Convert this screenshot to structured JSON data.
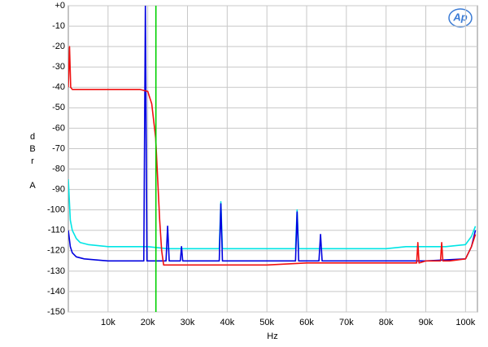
{
  "chart_data": {
    "type": "line",
    "logo": "Ap",
    "xlabel": "Hz",
    "ylabel": [
      "d",
      "B",
      "r",
      "A"
    ],
    "xlim": [
      0,
      103000
    ],
    "ylim": [
      -150,
      0
    ],
    "xticks": [
      {
        "value": 10000,
        "label": "10k"
      },
      {
        "value": 20000,
        "label": "20k"
      },
      {
        "value": 30000,
        "label": "30k"
      },
      {
        "value": 40000,
        "label": "40k"
      },
      {
        "value": 50000,
        "label": "50k"
      },
      {
        "value": 60000,
        "label": "60k"
      },
      {
        "value": 70000,
        "label": "70k"
      },
      {
        "value": 80000,
        "label": "80k"
      },
      {
        "value": 90000,
        "label": "90k"
      },
      {
        "value": 100000,
        "label": "100k"
      }
    ],
    "yticks": [
      {
        "value": 0,
        "label": "+0"
      },
      -10,
      -20,
      -30,
      -40,
      -50,
      -60,
      -70,
      -80,
      -90,
      -100,
      -110,
      -120,
      -130,
      -140,
      -150
    ],
    "grid": true,
    "series": [
      {
        "color": "#00e5e5",
        "x": [
          0,
          500,
          1000,
          2000,
          3000,
          5000,
          10000,
          15000,
          20000,
          25000,
          30000,
          35000,
          38000,
          38400,
          38800,
          45000,
          50000,
          55000,
          57200,
          57600,
          58000,
          65000,
          70000,
          75000,
          80000,
          85000,
          90000,
          95000,
          100000,
          101500,
          102500
        ],
        "values": [
          -85,
          -105,
          -110,
          -114,
          -116,
          -117,
          -118,
          -118,
          -118,
          -119,
          -119,
          -119,
          -119,
          -96,
          -119,
          -119,
          -119,
          -119,
          -119,
          -100,
          -119,
          -119,
          -119,
          -119,
          -119,
          -118,
          -118,
          -118,
          -117,
          -113,
          -108
        ]
      },
      {
        "color": "#0000e0",
        "x": [
          0,
          500,
          1000,
          2000,
          4000,
          10000,
          19000,
          19400,
          19800,
          24600,
          25000,
          25400,
          28200,
          28500,
          28800,
          38000,
          38400,
          38800,
          50000,
          57200,
          57600,
          58000,
          63100,
          63500,
          63900,
          75000,
          80000,
          90000,
          100000,
          101500,
          102500
        ],
        "values": [
          -110,
          -118,
          -121,
          -123,
          -124,
          -125,
          -125,
          0,
          -125,
          -125,
          -108,
          -125,
          -125,
          -118,
          -125,
          -125,
          -97,
          -125,
          -125,
          -125,
          -101,
          -125,
          -125,
          -112,
          -125,
          -125,
          -125,
          -125,
          -124,
          -118,
          -110
        ]
      },
      {
        "color": "#f01010",
        "x": [
          0,
          300,
          600,
          1000,
          2000,
          5000,
          10000,
          15000,
          18000,
          20000,
          21000,
          22000,
          22500,
          23000,
          23500,
          24000,
          25000,
          30000,
          40000,
          50000,
          60000,
          70000,
          80000,
          87700,
          88000,
          88300,
          90000,
          93700,
          94000,
          94300,
          96000,
          100000,
          101500,
          102500
        ],
        "values": [
          -40,
          -20,
          -40,
          -41,
          -41,
          -41,
          -41,
          -41,
          -41,
          -42,
          -48,
          -65,
          -85,
          -105,
          -120,
          -127,
          -127,
          -127,
          -127,
          -127,
          -126,
          -126,
          -126,
          -126,
          -116,
          -126,
          -125,
          -125,
          -116,
          -125,
          -125,
          -124,
          -118,
          -112
        ]
      },
      {
        "color": "#00d000",
        "x": [
          22050,
          22050
        ],
        "values": [
          -150,
          0
        ]
      }
    ]
  }
}
